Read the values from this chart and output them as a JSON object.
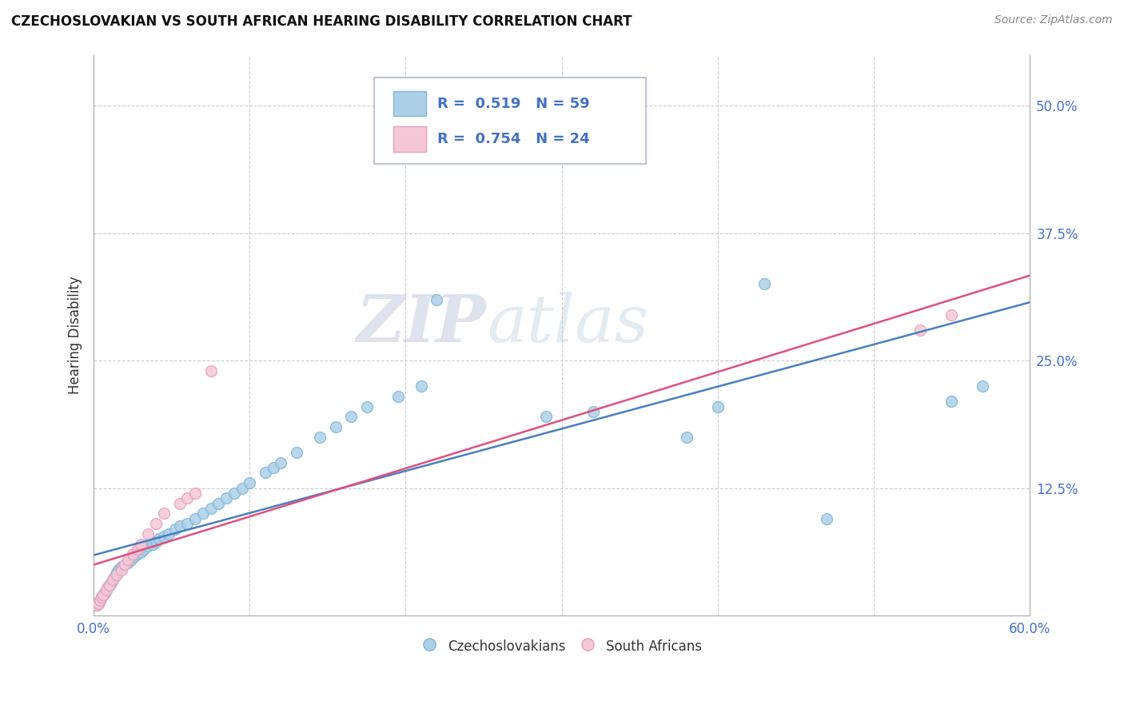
{
  "title": "CZECHOSLOVAKIAN VS SOUTH AFRICAN HEARING DISABILITY CORRELATION CHART",
  "source": "Source: ZipAtlas.com",
  "ylabel": "Hearing Disability",
  "xlim": [
    0.0,
    0.6
  ],
  "ylim": [
    0.0,
    0.55
  ],
  "xticks": [
    0.0,
    0.1,
    0.2,
    0.3,
    0.4,
    0.5,
    0.6
  ],
  "xticklabels": [
    "0.0%",
    "",
    "",
    "",
    "",
    "",
    "60.0%"
  ],
  "ytick_positions": [
    0.125,
    0.25,
    0.375,
    0.5
  ],
  "ytick_labels": [
    "12.5%",
    "25.0%",
    "37.5%",
    "50.0%"
  ],
  "blue_color": "#7db8d8",
  "blue_fill": "#aecfe8",
  "pink_color": "#e8a0b8",
  "pink_fill": "#f5c8d8",
  "line_blue": "#4a7fc0",
  "line_pink": "#e05080",
  "watermark_zip": "ZIP",
  "watermark_atlas": "atlas",
  "legend_text1": "R =  0.519   N = 59",
  "legend_text2": "R =  0.754   N = 24",
  "blue_scatter_x": [
    0.002,
    0.003,
    0.004,
    0.005,
    0.006,
    0.007,
    0.008,
    0.009,
    0.01,
    0.011,
    0.012,
    0.013,
    0.014,
    0.015,
    0.016,
    0.018,
    0.02,
    0.022,
    0.024,
    0.026,
    0.028,
    0.03,
    0.032,
    0.035,
    0.038,
    0.04,
    0.042,
    0.045,
    0.048,
    0.052,
    0.055,
    0.06,
    0.065,
    0.07,
    0.075,
    0.08,
    0.085,
    0.09,
    0.095,
    0.1,
    0.11,
    0.115,
    0.12,
    0.13,
    0.145,
    0.155,
    0.165,
    0.175,
    0.195,
    0.21,
    0.22,
    0.29,
    0.32,
    0.38,
    0.4,
    0.43,
    0.47,
    0.55,
    0.57
  ],
  "blue_scatter_y": [
    0.01,
    0.012,
    0.015,
    0.018,
    0.02,
    0.022,
    0.025,
    0.028,
    0.03,
    0.032,
    0.035,
    0.038,
    0.04,
    0.042,
    0.045,
    0.048,
    0.05,
    0.052,
    0.055,
    0.058,
    0.06,
    0.062,
    0.065,
    0.068,
    0.07,
    0.072,
    0.075,
    0.078,
    0.08,
    0.085,
    0.088,
    0.09,
    0.095,
    0.1,
    0.105,
    0.11,
    0.115,
    0.12,
    0.125,
    0.13,
    0.14,
    0.145,
    0.15,
    0.16,
    0.175,
    0.185,
    0.195,
    0.205,
    0.215,
    0.225,
    0.31,
    0.195,
    0.2,
    0.175,
    0.205,
    0.325,
    0.095,
    0.21,
    0.225
  ],
  "pink_scatter_x": [
    0.002,
    0.003,
    0.004,
    0.005,
    0.006,
    0.008,
    0.01,
    0.012,
    0.015,
    0.018,
    0.02,
    0.022,
    0.025,
    0.028,
    0.03,
    0.035,
    0.04,
    0.045,
    0.055,
    0.06,
    0.065,
    0.075,
    0.53,
    0.55
  ],
  "pink_scatter_y": [
    0.01,
    0.012,
    0.015,
    0.018,
    0.02,
    0.025,
    0.03,
    0.035,
    0.04,
    0.045,
    0.05,
    0.055,
    0.06,
    0.065,
    0.07,
    0.08,
    0.09,
    0.1,
    0.11,
    0.115,
    0.12,
    0.24,
    0.28,
    0.295
  ]
}
